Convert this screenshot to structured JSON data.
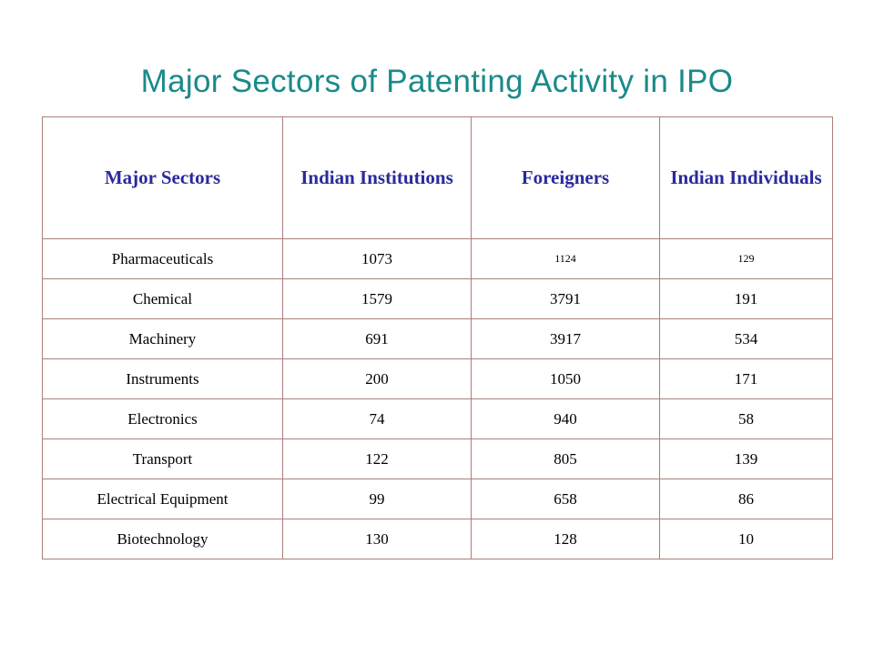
{
  "title": "Major Sectors of Patenting Activity in IPO",
  "colors": {
    "title": "#1a8a8a",
    "header_text": "#2a2a9c",
    "border": "#a9807a"
  },
  "table": {
    "headers": [
      "Major Sectors",
      "Indian Institutions",
      "Foreigners",
      "Indian Individuals"
    ],
    "rows": [
      [
        "Pharmaceuticals",
        "1073",
        "1124",
        "129"
      ],
      [
        "Chemical",
        "1579",
        "3791",
        "191"
      ],
      [
        "Machinery",
        "691",
        "3917",
        "534"
      ],
      [
        "Instruments",
        "200",
        "1050",
        "171"
      ],
      [
        "Electronics",
        "74",
        "940",
        "58"
      ],
      [
        "Transport",
        "122",
        "805",
        "139"
      ],
      [
        "Electrical Equipment",
        "99",
        "658",
        "86"
      ],
      [
        "Biotechnology",
        "130",
        "128",
        "10"
      ]
    ]
  }
}
